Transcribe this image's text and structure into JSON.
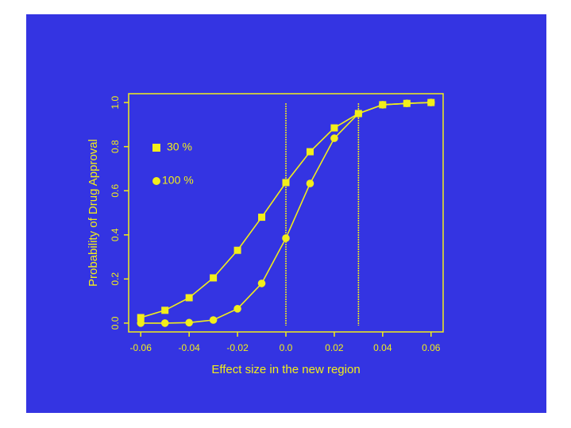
{
  "chart_data": {
    "type": "line",
    "xlabel": "Effect size in the new region",
    "ylabel": "Probability of Drug Approval",
    "x": [
      -0.06,
      -0.05,
      -0.04,
      -0.03,
      -0.02,
      -0.01,
      0,
      0.01,
      0.02,
      0.03,
      0.04,
      0.05,
      0.06
    ],
    "series": [
      {
        "name": "30 %",
        "color": "#f2ee1a",
        "marker": "square",
        "values": [
          0.025,
          0.058,
          0.115,
          0.205,
          0.33,
          0.48,
          0.637,
          0.777,
          0.885,
          0.95,
          0.99,
          0.996,
          1.0
        ]
      },
      {
        "name": "100 %",
        "color": "#f2ee1a",
        "marker": "circle",
        "values": [
          0.0,
          0.0,
          0.002,
          0.014,
          0.065,
          0.18,
          0.385,
          0.633,
          0.838,
          0.95,
          0.99,
          0.996,
          1.0
        ]
      }
    ],
    "vlines": [
      0,
      0.03
    ],
    "xlim": [
      -0.065,
      0.065
    ],
    "xticks": [
      -0.06,
      -0.04,
      -0.02,
      {
        "value": 0,
        "label": "0.0"
      },
      0.02,
      0.04,
      0.06
    ],
    "ylim": [
      -0.04,
      1.04
    ],
    "yticks": [
      {
        "value": 0,
        "label": "0.0"
      },
      0.2,
      0.4,
      0.6,
      0.8,
      {
        "value": 1,
        "label": "1.0"
      }
    ],
    "background": "#3434e2"
  }
}
